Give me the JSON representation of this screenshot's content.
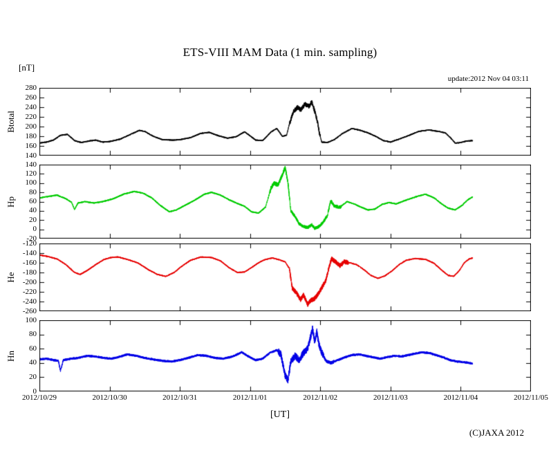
{
  "page": {
    "title": "ETS-VIII MAM Data (1 min. sampling)",
    "unit_label": "[nT]",
    "update_text": "update:2012 Nov 04 03:11",
    "xaxis_label": "[UT]",
    "copyright": "(C)JAXA 2012",
    "background": "#ffffff"
  },
  "chart_data": {
    "type": "line",
    "title": "ETS-VIII MAM Data (1 min. sampling)",
    "xlabel": "[UT]",
    "y_unit": "[nT]",
    "x_unit": "days since 2012/10/29 00:00 UT",
    "xlim": [
      0,
      7
    ],
    "xticks": [
      0,
      1,
      2,
      3,
      4,
      5,
      6,
      7
    ],
    "xtick_labels": [
      "2012/10/29",
      "2012/10/30",
      "2012/10/31",
      "2012/11/01",
      "2012/11/02",
      "2012/11/03",
      "2012/11/04",
      "2012/11/05"
    ],
    "grid": false,
    "legend": "none",
    "panels": [
      {
        "name": "Btotal",
        "color": "#000000",
        "ylim": [
          140,
          280
        ],
        "ytick_step": 20,
        "base_noise": 1.4,
        "noise_regions": [
          [
            3.56,
            4.0,
            5
          ]
        ],
        "seed": 11,
        "anchors": [
          [
            0,
            166
          ],
          [
            0.1,
            168
          ],
          [
            0.2,
            172
          ],
          [
            0.3,
            182
          ],
          [
            0.4,
            184
          ],
          [
            0.5,
            171
          ],
          [
            0.6,
            167
          ],
          [
            0.7,
            170
          ],
          [
            0.8,
            172
          ],
          [
            0.9,
            168
          ],
          [
            1.0,
            169
          ],
          [
            1.15,
            174
          ],
          [
            1.3,
            184
          ],
          [
            1.42,
            192
          ],
          [
            1.5,
            190
          ],
          [
            1.62,
            180
          ],
          [
            1.75,
            173
          ],
          [
            1.9,
            172
          ],
          [
            2.0,
            173
          ],
          [
            2.15,
            177
          ],
          [
            2.3,
            186
          ],
          [
            2.42,
            188
          ],
          [
            2.55,
            181
          ],
          [
            2.68,
            176
          ],
          [
            2.8,
            179
          ],
          [
            2.92,
            189
          ],
          [
            3.0,
            181
          ],
          [
            3.08,
            172
          ],
          [
            3.18,
            171
          ],
          [
            3.3,
            189
          ],
          [
            3.38,
            196
          ],
          [
            3.46,
            180
          ],
          [
            3.52,
            182
          ],
          [
            3.56,
            205
          ],
          [
            3.62,
            232
          ],
          [
            3.68,
            240
          ],
          [
            3.72,
            234
          ],
          [
            3.78,
            246
          ],
          [
            3.84,
            242
          ],
          [
            3.88,
            251
          ],
          [
            3.92,
            232
          ],
          [
            3.96,
            210
          ],
          [
            3.99,
            185
          ],
          [
            4.02,
            168
          ],
          [
            4.1,
            167
          ],
          [
            4.2,
            173
          ],
          [
            4.32,
            186
          ],
          [
            4.45,
            196
          ],
          [
            4.55,
            193
          ],
          [
            4.68,
            187
          ],
          [
            4.8,
            179
          ],
          [
            4.9,
            171
          ],
          [
            5.0,
            168
          ],
          [
            5.12,
            174
          ],
          [
            5.25,
            181
          ],
          [
            5.4,
            190
          ],
          [
            5.55,
            193
          ],
          [
            5.68,
            190
          ],
          [
            5.78,
            187
          ],
          [
            5.86,
            176
          ],
          [
            5.92,
            166
          ],
          [
            6.0,
            167
          ],
          [
            6.08,
            170
          ],
          [
            6.17,
            171
          ]
        ]
      },
      {
        "name": "Hp",
        "color": "#00cc00",
        "ylim": [
          -20,
          140
        ],
        "ytick_step": 20,
        "base_noise": 1.6,
        "noise_regions": [
          [
            3.28,
            3.56,
            5
          ],
          [
            3.56,
            4.05,
            3.5
          ],
          [
            4.05,
            4.3,
            4
          ]
        ],
        "seed": 22,
        "anchors": [
          [
            0,
            68
          ],
          [
            0.12,
            71
          ],
          [
            0.25,
            74
          ],
          [
            0.38,
            66
          ],
          [
            0.46,
            58
          ],
          [
            0.5,
            43
          ],
          [
            0.55,
            57
          ],
          [
            0.65,
            60
          ],
          [
            0.78,
            57
          ],
          [
            0.9,
            60
          ],
          [
            1.05,
            66
          ],
          [
            1.2,
            76
          ],
          [
            1.35,
            82
          ],
          [
            1.48,
            78
          ],
          [
            1.6,
            68
          ],
          [
            1.72,
            52
          ],
          [
            1.85,
            38
          ],
          [
            1.95,
            42
          ],
          [
            2.05,
            50
          ],
          [
            2.2,
            62
          ],
          [
            2.35,
            76
          ],
          [
            2.45,
            80
          ],
          [
            2.58,
            74
          ],
          [
            2.7,
            64
          ],
          [
            2.82,
            56
          ],
          [
            2.92,
            50
          ],
          [
            3.02,
            38
          ],
          [
            3.12,
            35
          ],
          [
            3.22,
            48
          ],
          [
            3.3,
            90
          ],
          [
            3.34,
            100
          ],
          [
            3.4,
            96
          ],
          [
            3.46,
            118
          ],
          [
            3.5,
            134
          ],
          [
            3.54,
            100
          ],
          [
            3.58,
            40
          ],
          [
            3.64,
            28
          ],
          [
            3.7,
            12
          ],
          [
            3.76,
            6
          ],
          [
            3.82,
            4
          ],
          [
            3.88,
            10
          ],
          [
            3.92,
            2
          ],
          [
            3.98,
            6
          ],
          [
            4.04,
            15
          ],
          [
            4.1,
            30
          ],
          [
            4.15,
            62
          ],
          [
            4.2,
            50
          ],
          [
            4.28,
            48
          ],
          [
            4.38,
            60
          ],
          [
            4.48,
            55
          ],
          [
            4.58,
            48
          ],
          [
            4.68,
            42
          ],
          [
            4.78,
            44
          ],
          [
            4.88,
            54
          ],
          [
            4.98,
            58
          ],
          [
            5.08,
            55
          ],
          [
            5.2,
            62
          ],
          [
            5.35,
            70
          ],
          [
            5.5,
            76
          ],
          [
            5.62,
            68
          ],
          [
            5.72,
            56
          ],
          [
            5.82,
            46
          ],
          [
            5.92,
            42
          ],
          [
            6.02,
            52
          ],
          [
            6.1,
            64
          ],
          [
            6.17,
            70
          ]
        ]
      },
      {
        "name": "He",
        "color": "#e60000",
        "ylim": [
          -260,
          -120
        ],
        "ytick_step": 20,
        "base_noise": 1.4,
        "noise_regions": [
          [
            3.56,
            4.05,
            5
          ],
          [
            4.05,
            4.4,
            5
          ]
        ],
        "seed": 33,
        "anchors": [
          [
            0,
            -144
          ],
          [
            0.12,
            -147
          ],
          [
            0.25,
            -152
          ],
          [
            0.38,
            -164
          ],
          [
            0.5,
            -180
          ],
          [
            0.58,
            -184
          ],
          [
            0.68,
            -176
          ],
          [
            0.8,
            -164
          ],
          [
            0.92,
            -153
          ],
          [
            1.02,
            -149
          ],
          [
            1.12,
            -148
          ],
          [
            1.25,
            -153
          ],
          [
            1.4,
            -160
          ],
          [
            1.55,
            -174
          ],
          [
            1.68,
            -184
          ],
          [
            1.8,
            -188
          ],
          [
            1.92,
            -180
          ],
          [
            2.02,
            -168
          ],
          [
            2.15,
            -155
          ],
          [
            2.3,
            -148
          ],
          [
            2.45,
            -149
          ],
          [
            2.58,
            -156
          ],
          [
            2.7,
            -170
          ],
          [
            2.82,
            -180
          ],
          [
            2.92,
            -179
          ],
          [
            3.02,
            -170
          ],
          [
            3.12,
            -160
          ],
          [
            3.22,
            -153
          ],
          [
            3.32,
            -150
          ],
          [
            3.42,
            -154
          ],
          [
            3.5,
            -158
          ],
          [
            3.56,
            -172
          ],
          [
            3.6,
            -212
          ],
          [
            3.66,
            -222
          ],
          [
            3.72,
            -236
          ],
          [
            3.76,
            -226
          ],
          [
            3.82,
            -246
          ],
          [
            3.86,
            -238
          ],
          [
            3.92,
            -234
          ],
          [
            3.98,
            -222
          ],
          [
            4.02,
            -212
          ],
          [
            4.08,
            -196
          ],
          [
            4.12,
            -172
          ],
          [
            4.16,
            -152
          ],
          [
            4.22,
            -158
          ],
          [
            4.28,
            -166
          ],
          [
            4.34,
            -158
          ],
          [
            4.42,
            -160
          ],
          [
            4.52,
            -164
          ],
          [
            4.62,
            -174
          ],
          [
            4.72,
            -186
          ],
          [
            4.82,
            -192
          ],
          [
            4.92,
            -187
          ],
          [
            5.02,
            -177
          ],
          [
            5.12,
            -164
          ],
          [
            5.22,
            -155
          ],
          [
            5.35,
            -151
          ],
          [
            5.5,
            -153
          ],
          [
            5.62,
            -161
          ],
          [
            5.72,
            -174
          ],
          [
            5.82,
            -186
          ],
          [
            5.9,
            -188
          ],
          [
            5.98,
            -176
          ],
          [
            6.05,
            -160
          ],
          [
            6.12,
            -152
          ],
          [
            6.17,
            -150
          ]
        ]
      },
      {
        "name": "Hn",
        "color": "#0000e6",
        "ylim": [
          0,
          100
        ],
        "ytick_step": 20,
        "base_noise": 1.6,
        "noise_regions": [
          [
            3.4,
            4.05,
            5
          ],
          [
            4.05,
            4.2,
            2.5
          ]
        ],
        "seed": 44,
        "anchors": [
          [
            0,
            45
          ],
          [
            0.1,
            46
          ],
          [
            0.2,
            44
          ],
          [
            0.27,
            43
          ],
          [
            0.3,
            29
          ],
          [
            0.34,
            44
          ],
          [
            0.45,
            46
          ],
          [
            0.55,
            47
          ],
          [
            0.68,
            50
          ],
          [
            0.8,
            49
          ],
          [
            0.92,
            47
          ],
          [
            1.02,
            46
          ],
          [
            1.12,
            48
          ],
          [
            1.25,
            52
          ],
          [
            1.38,
            50
          ],
          [
            1.5,
            47
          ],
          [
            1.62,
            45
          ],
          [
            1.75,
            43
          ],
          [
            1.88,
            42
          ],
          [
            2.0,
            44
          ],
          [
            2.12,
            47
          ],
          [
            2.25,
            51
          ],
          [
            2.38,
            50
          ],
          [
            2.5,
            47
          ],
          [
            2.62,
            46
          ],
          [
            2.75,
            49
          ],
          [
            2.88,
            55
          ],
          [
            2.98,
            49
          ],
          [
            3.08,
            44
          ],
          [
            3.18,
            46
          ],
          [
            3.28,
            54
          ],
          [
            3.38,
            58
          ],
          [
            3.44,
            52
          ],
          [
            3.5,
            22
          ],
          [
            3.54,
            16
          ],
          [
            3.58,
            42
          ],
          [
            3.64,
            50
          ],
          [
            3.7,
            44
          ],
          [
            3.76,
            54
          ],
          [
            3.82,
            60
          ],
          [
            3.86,
            76
          ],
          [
            3.89,
            88
          ],
          [
            3.92,
            70
          ],
          [
            3.95,
            84
          ],
          [
            3.98,
            66
          ],
          [
            4.02,
            55
          ],
          [
            4.08,
            43
          ],
          [
            4.15,
            40
          ],
          [
            4.25,
            44
          ],
          [
            4.35,
            48
          ],
          [
            4.45,
            51
          ],
          [
            4.55,
            52
          ],
          [
            4.65,
            50
          ],
          [
            4.75,
            48
          ],
          [
            4.85,
            46
          ],
          [
            4.95,
            48
          ],
          [
            5.05,
            50
          ],
          [
            5.15,
            49
          ],
          [
            5.25,
            51
          ],
          [
            5.35,
            53
          ],
          [
            5.45,
            55
          ],
          [
            5.55,
            54
          ],
          [
            5.65,
            51
          ],
          [
            5.75,
            48
          ],
          [
            5.85,
            44
          ],
          [
            5.95,
            42
          ],
          [
            6.05,
            41
          ],
          [
            6.12,
            40
          ],
          [
            6.17,
            39
          ]
        ]
      }
    ]
  }
}
